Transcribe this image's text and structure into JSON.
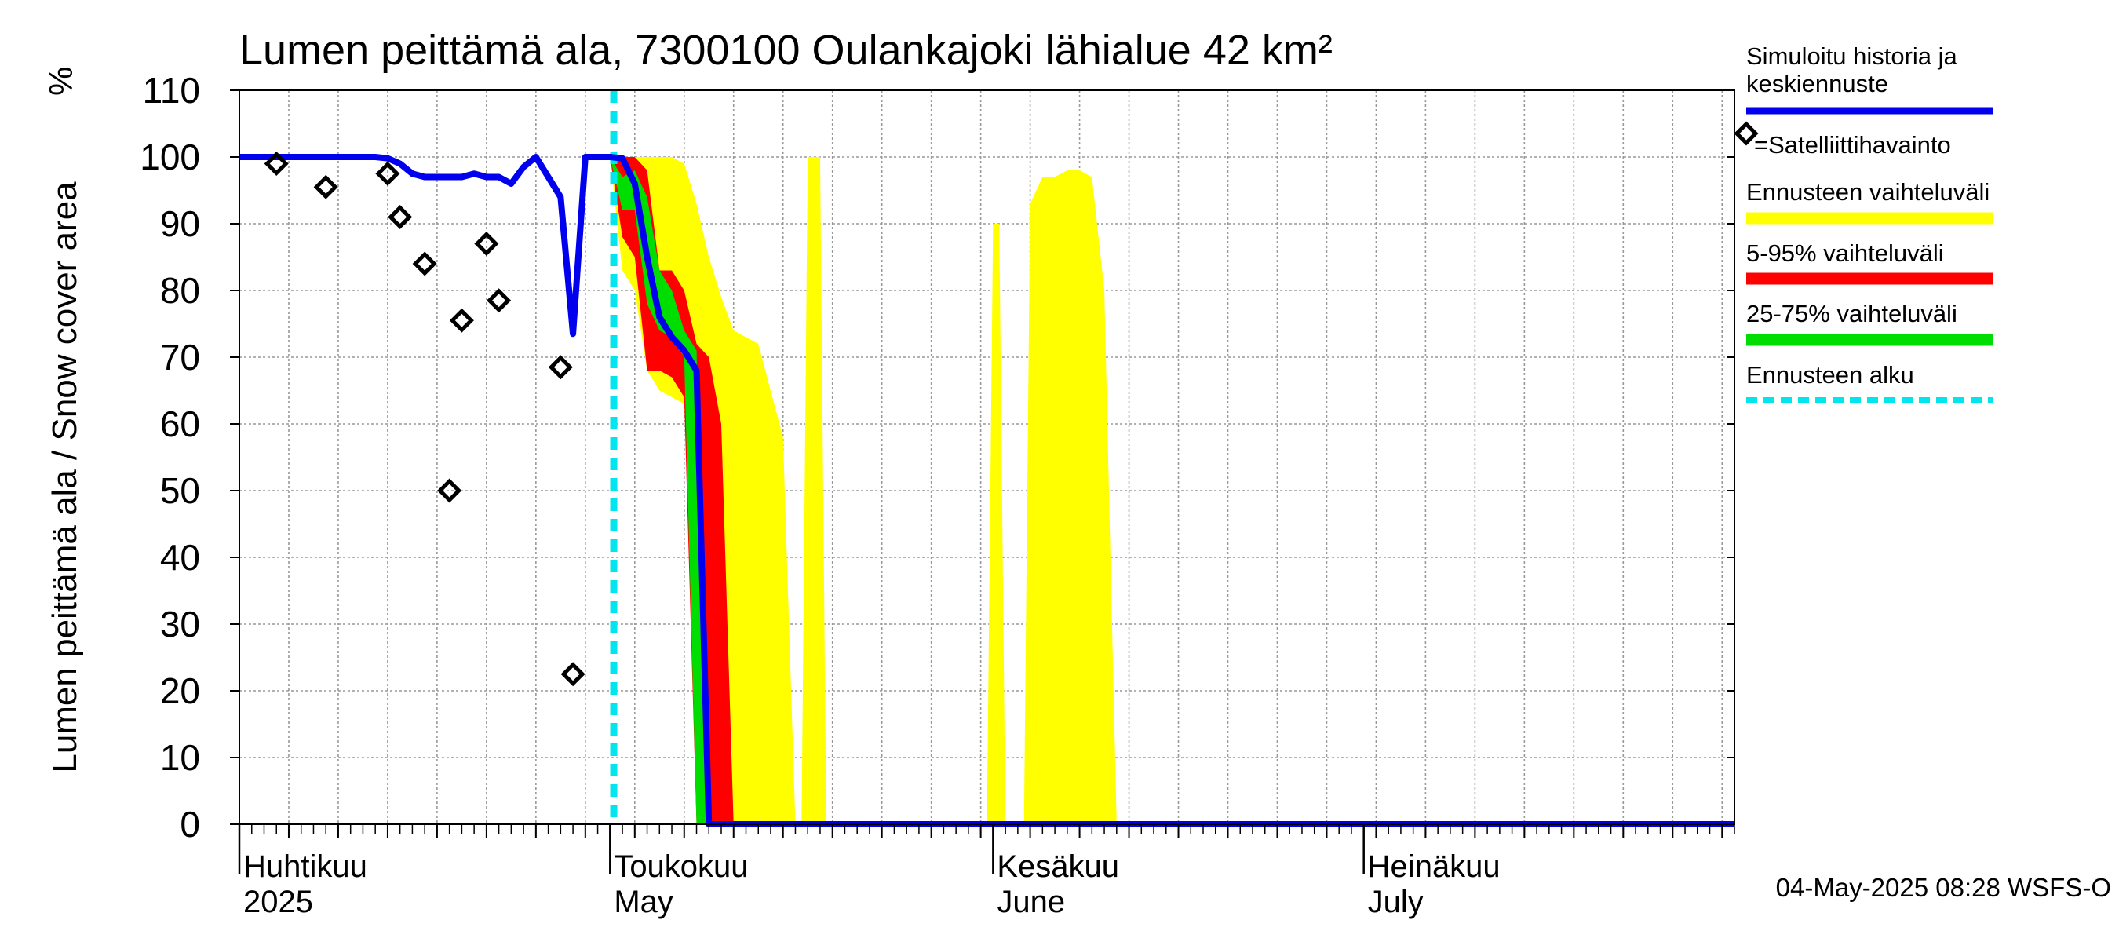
{
  "chart_data": {
    "type": "area",
    "title": "Lumen peittämä ala, 7300100 Oulankajoki lähialue 42 km²",
    "ylabel": "Lumen peittämä ala / Snow cover area",
    "yunit": "%",
    "ylim": [
      0,
      110
    ],
    "yticks": [
      0,
      10,
      20,
      30,
      40,
      50,
      60,
      70,
      80,
      90,
      100,
      110
    ],
    "x_axis": {
      "start_day": 0,
      "end_day": 121,
      "note": "day 0 = 1 April 2025"
    },
    "month_labels": [
      {
        "day": 0,
        "line1": "Huhtikuu",
        "line2": "2025"
      },
      {
        "day": 30,
        "line1": "Toukokuu",
        "line2": "May"
      },
      {
        "day": 61,
        "line1": "Kesäkuu",
        "line2": "June"
      },
      {
        "day": 91,
        "line1": "Heinäkuu",
        "line2": "July"
      }
    ],
    "forecast_start_day": 30.3,
    "series": [
      {
        "name": "Simuloitu historia ja keskiennuste",
        "color": "#0000ee",
        "x": [
          0,
          2,
          5,
          8,
          9,
          10,
          11,
          12,
          13,
          14,
          15,
          16,
          17,
          18,
          19,
          20,
          21,
          22,
          23,
          24,
          25,
          26,
          27,
          28,
          29,
          30,
          31,
          32,
          33,
          34,
          35,
          36,
          37,
          38,
          39,
          121
        ],
        "values": [
          100,
          100,
          100,
          100,
          100,
          100,
          100,
          99.8,
          99,
          97.5,
          97,
          97,
          97,
          97,
          97.5,
          97,
          97,
          96,
          98.5,
          100,
          97,
          94,
          73.5,
          100,
          100,
          100,
          99.8,
          96,
          85,
          76,
          73,
          71,
          68,
          0,
          0,
          0
        ]
      }
    ],
    "bands": [
      {
        "name": "Ennusteen vaihteluväli",
        "color": "#ffff00",
        "x": [
          30,
          31,
          32,
          33,
          34,
          35,
          36,
          37,
          38,
          39,
          40,
          41,
          42,
          43,
          44,
          45,
          46,
          47,
          48,
          49
        ],
        "upper": [
          100,
          100,
          100,
          100,
          100,
          100,
          99,
          93,
          85,
          79,
          74,
          73,
          72,
          65,
          58,
          0,
          0,
          0,
          0,
          0
        ],
        "lower": [
          100,
          83,
          80,
          68,
          65,
          64,
          63,
          62,
          40,
          0,
          0,
          0,
          0,
          0,
          0,
          0,
          0,
          0,
          0,
          0
        ],
        "extra_blobs": [
          {
            "x": [
              45.5,
              46,
              46.5,
              47,
              47.5
            ],
            "upper": [
              0,
              100,
              100,
              100,
              0
            ],
            "lower": [
              0,
              0,
              0,
              0,
              0
            ]
          },
          {
            "x": [
              60.5,
              61,
              61.5,
              62,
              62.5
            ],
            "upper": [
              0,
              90,
              90,
              0,
              0
            ],
            "lower": [
              0,
              0,
              0,
              0,
              0
            ]
          },
          {
            "x": [
              63.5,
              64,
              65,
              66,
              67,
              68,
              69,
              70,
              71,
              72
            ],
            "upper": [
              0,
              93,
              97,
              97,
              98,
              98,
              97,
              80,
              0,
              0
            ],
            "lower": [
              0,
              0,
              0,
              0,
              0,
              0,
              0,
              0,
              0,
              0
            ]
          }
        ]
      },
      {
        "name": "5-95% vaihteluväli",
        "color": "#ff0000",
        "x": [
          30,
          31,
          32,
          33,
          34,
          35,
          36,
          37,
          38,
          39,
          40,
          41,
          42
        ],
        "upper": [
          100,
          100,
          100,
          98,
          83,
          83,
          80,
          72,
          70,
          60,
          0,
          0,
          0
        ],
        "lower": [
          100,
          88,
          85,
          68,
          68,
          67,
          64,
          0,
          0,
          0,
          0,
          0,
          0
        ]
      },
      {
        "name": "25-75% vaihteluväli",
        "color": "#00dd00",
        "x": [
          30,
          31,
          32,
          33,
          34,
          35,
          36,
          37,
          38,
          39,
          40
        ],
        "upper": [
          100,
          97,
          98,
          94,
          83,
          80,
          74,
          71,
          0,
          0,
          0
        ],
        "lower": [
          100,
          92,
          92,
          78,
          74,
          73,
          70,
          0,
          0,
          0,
          0
        ]
      }
    ],
    "observations": {
      "name": "=Satelliittihavainto",
      "marker": "diamond",
      "x": [
        3,
        7,
        12,
        13,
        15,
        18,
        20,
        21,
        26,
        27
      ],
      "values": [
        99,
        95.5,
        97.5,
        91,
        84,
        75.5,
        87,
        78.5,
        68.5,
        22.5
      ],
      "extra": [
        {
          "x": 17,
          "value": 50
        }
      ]
    },
    "legend": {
      "position": "right",
      "entries": [
        {
          "label": "Simuloitu historia ja",
          "label2": "keskiennuste",
          "color": "#0000ee",
          "style": "line"
        },
        {
          "label": "=Satelliittihavainto",
          "color": "#000000",
          "style": "diamond"
        },
        {
          "label": "Ennusteen vaihteluväli",
          "color": "#ffff00",
          "style": "thick"
        },
        {
          "label": "5-95% vaihteluväli",
          "color": "#ff0000",
          "style": "thick"
        },
        {
          "label": "25-75% vaihteluväli",
          "color": "#00dd00",
          "style": "thick"
        },
        {
          "label": "Ennusteen alku",
          "color": "#00e5ee",
          "style": "dashed"
        }
      ]
    },
    "grid": true,
    "footer": "04-May-2025 08:28 WSFS-O"
  }
}
